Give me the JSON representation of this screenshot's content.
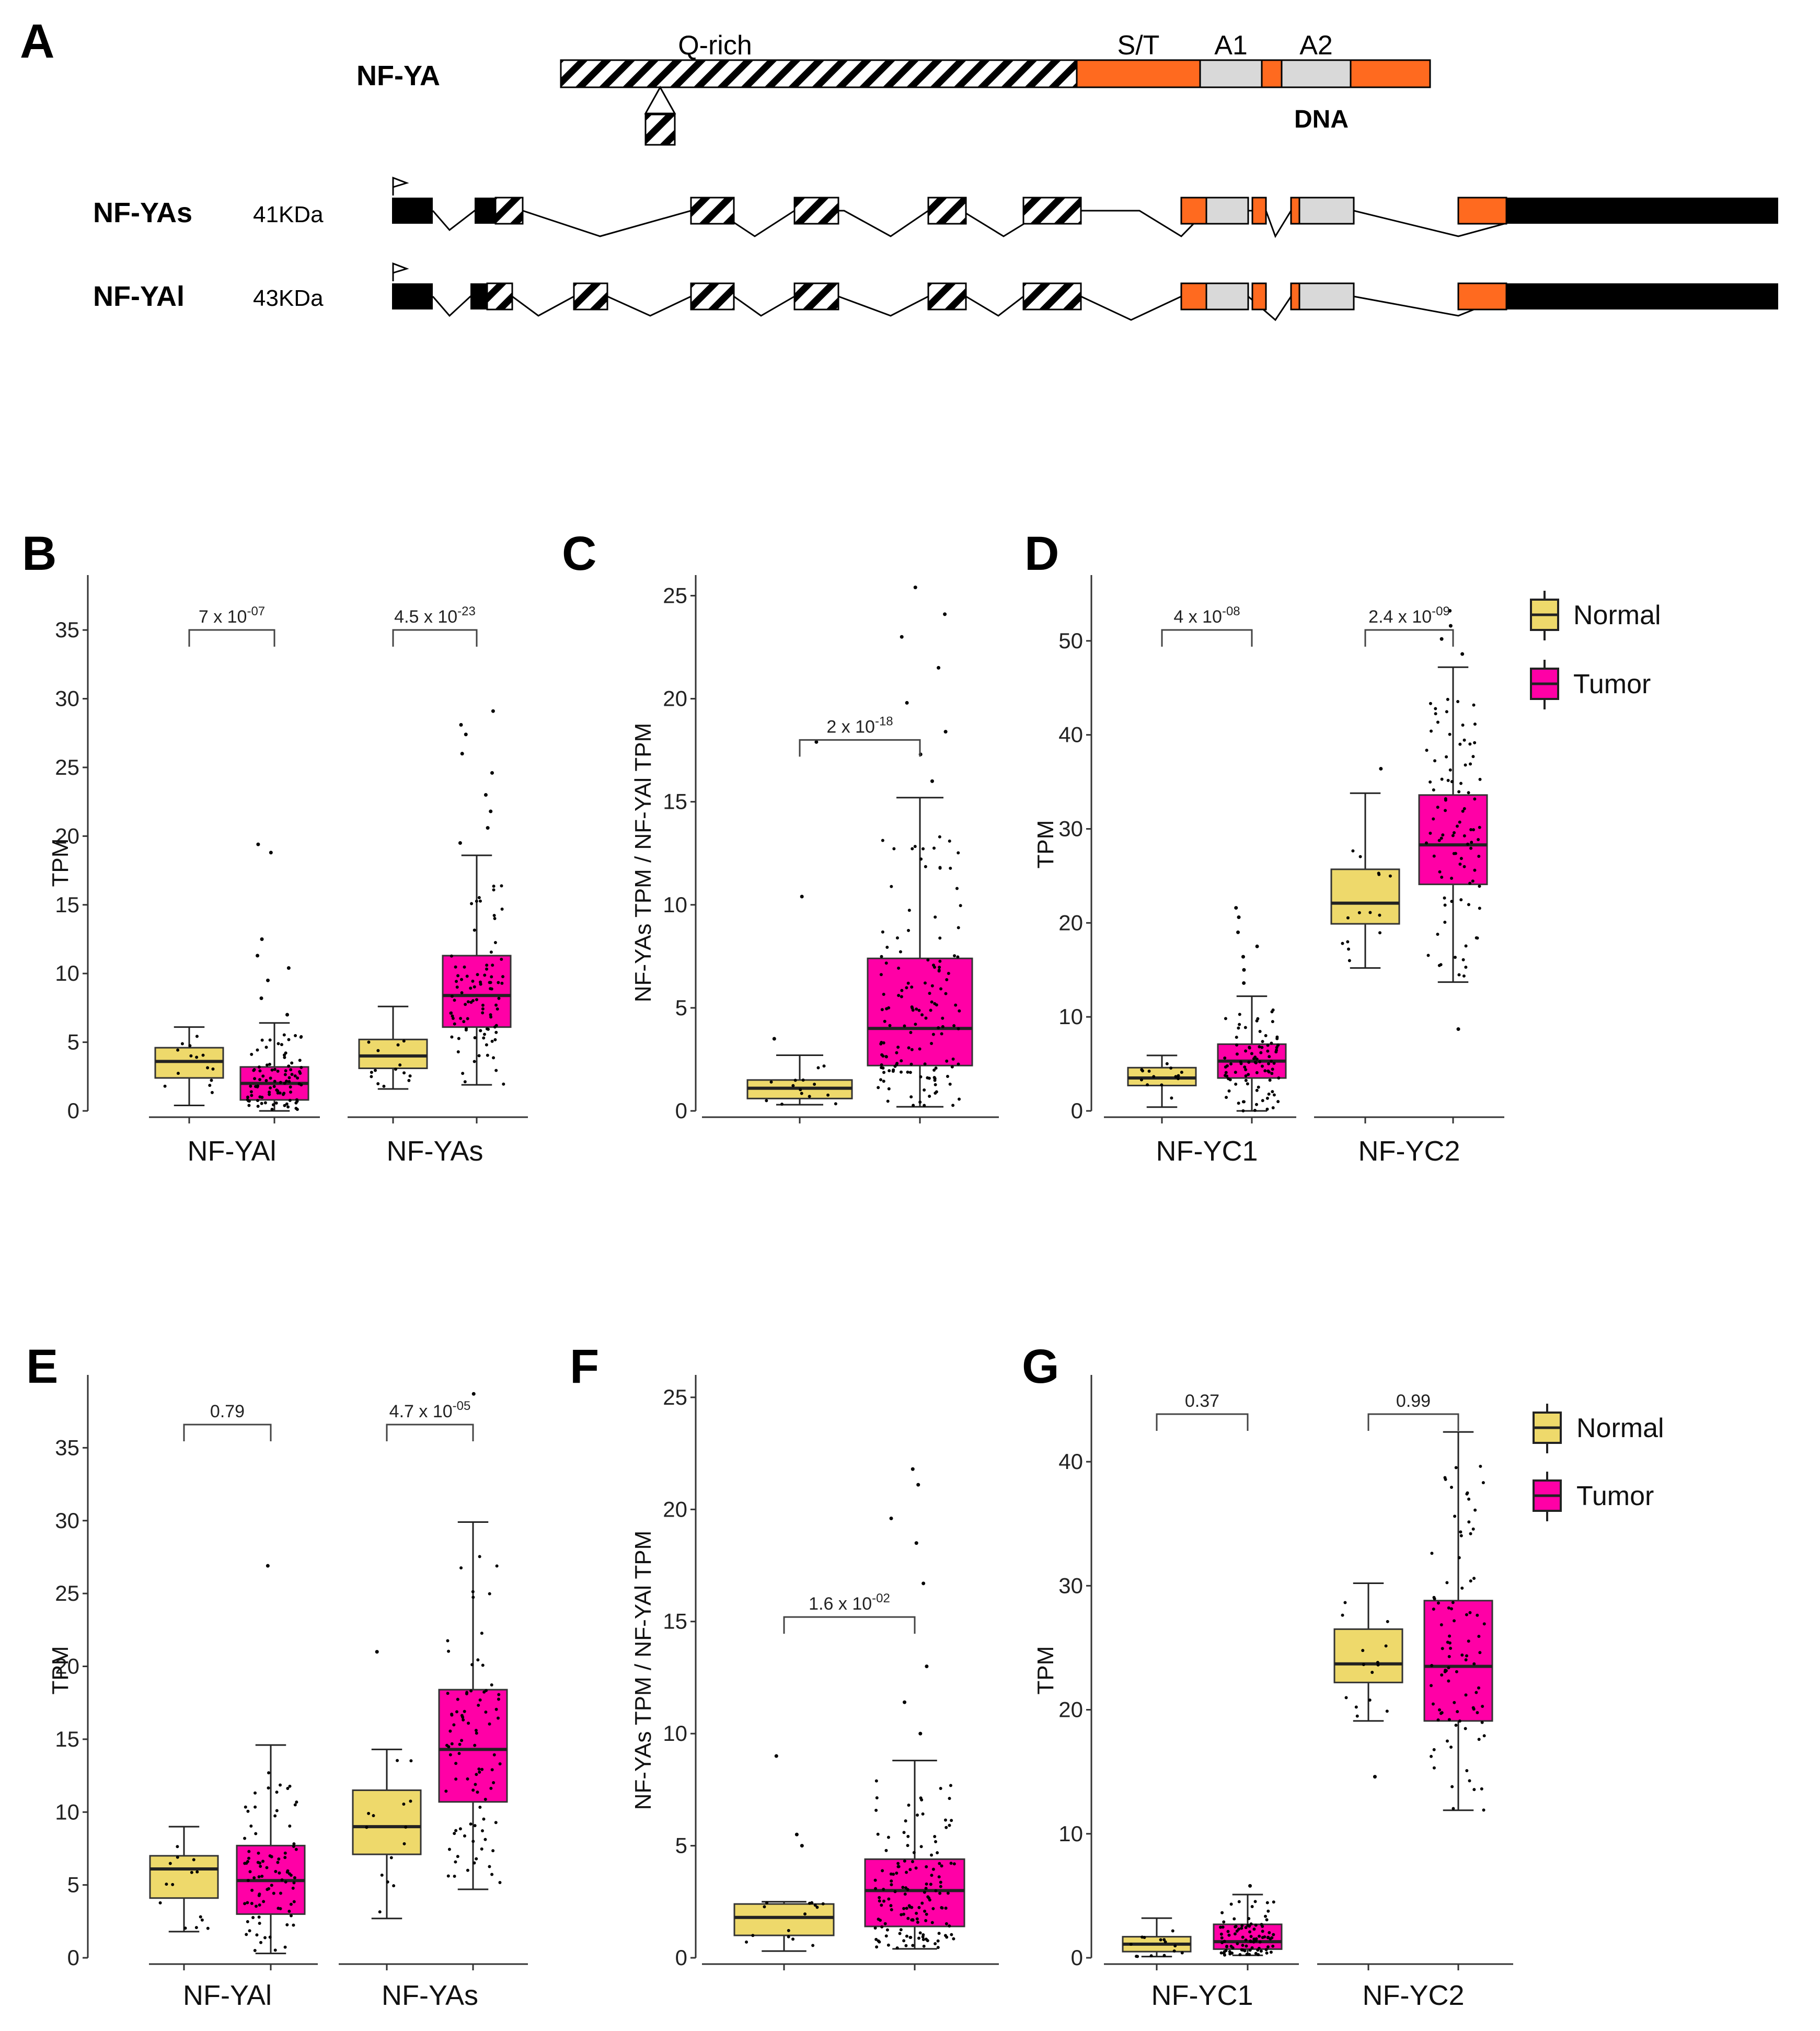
{
  "colors": {
    "normal": "#EED96B",
    "tumor": "#FF00A6",
    "domain_orange": "#FF6A1F",
    "domain_grey": "#D9D9D9"
  },
  "panel_a": {
    "label": "A",
    "protein": "NF-YA",
    "domains": {
      "q_rich": "Q-rich",
      "st": "S/T",
      "a1": "A1",
      "a2": "A2",
      "dna": "DNA"
    },
    "isoforms": [
      {
        "name": "NF-YAs",
        "mass": "41KDa"
      },
      {
        "name": "NF-YAl",
        "mass": "43KDa"
      }
    ]
  },
  "legend": {
    "normal": "Normal",
    "tumor": "Tumor"
  },
  "chart_data": [
    {
      "id": "B",
      "type": "box",
      "ylabel": "TPM",
      "ylim": [
        0,
        39
      ],
      "yticks": [
        "0",
        "5",
        "10",
        "15",
        "20",
        "25",
        "30",
        "35"
      ],
      "groups": [
        {
          "category": "NF-YAl",
          "pvalue": {
            "base": "7 x 10",
            "exp": "-07"
          },
          "normal": {
            "min": 0.4,
            "q1": 2.4,
            "median": 3.6,
            "q3": 4.6,
            "max": 6.1
          },
          "tumor": {
            "min": 0,
            "q1": 0.8,
            "median": 2.0,
            "q3": 3.2,
            "max": 6.4,
            "outliers": [
              7.0,
              8.2,
              9.5,
              10.4,
              11.3,
              12.5,
              18.8,
              19.4
            ]
          }
        },
        {
          "category": "NF-YAs",
          "pvalue": {
            "base": "4.5 x 10",
            "exp": "-23"
          },
          "normal": {
            "min": 1.6,
            "q1": 3.1,
            "median": 4.0,
            "q3": 5.2,
            "max": 7.6
          },
          "tumor": {
            "min": 1.9,
            "q1": 6.1,
            "median": 8.4,
            "q3": 11.3,
            "max": 18.6,
            "outliers": [
              19.5,
              20.6,
              21.8,
              23.0,
              24.6,
              26.0,
              27.4,
              28.1,
              29.1
            ]
          }
        }
      ]
    },
    {
      "id": "C",
      "type": "box",
      "ylabel": "NF-YAs TPM / NF-YAl TPM",
      "ylim": [
        0,
        26
      ],
      "yticks": [
        "0",
        "5",
        "10",
        "15",
        "20",
        "25"
      ],
      "groups": [
        {
          "category": "",
          "pvalue": {
            "base": "2 x 10",
            "exp": "-18"
          },
          "normal": {
            "min": 0.3,
            "q1": 0.6,
            "median": 1.1,
            "q3": 1.5,
            "max": 2.7,
            "outliers": [
              3.5,
              10.4,
              17.9
            ]
          },
          "tumor": {
            "min": 0.2,
            "q1": 2.2,
            "median": 4.0,
            "q3": 7.4,
            "max": 15.2,
            "outliers": [
              16.0,
              17.3,
              18.4,
              19.8,
              21.5,
              23.0,
              24.1,
              25.4
            ]
          }
        }
      ]
    },
    {
      "id": "D",
      "type": "box",
      "ylabel": "TPM",
      "ylim": [
        0,
        57
      ],
      "yticks": [
        "0",
        "10",
        "20",
        "30",
        "40",
        "50"
      ],
      "groups": [
        {
          "category": "NF-YC1",
          "pvalue": {
            "base": "4 x 10",
            "exp": "-08"
          },
          "normal": {
            "min": 0.4,
            "q1": 2.7,
            "median": 3.5,
            "q3": 4.6,
            "max": 5.9
          },
          "tumor": {
            "min": 0,
            "q1": 3.5,
            "median": 5.3,
            "q3": 7.1,
            "max": 12.2,
            "outliers": [
              13.6,
              15.0,
              16.4,
              17.5,
              19.0,
              20.6,
              21.6
            ]
          }
        },
        {
          "category": "NF-YC2",
          "pvalue": {
            "base": "2.4 x 10",
            "exp": "-09"
          },
          "normal": {
            "min": 15.2,
            "q1": 19.9,
            "median": 22.1,
            "q3": 25.7,
            "max": 33.8,
            "outliers": [
              36.4
            ]
          },
          "tumor": {
            "min": 13.7,
            "q1": 24.1,
            "median": 28.3,
            "q3": 33.6,
            "max": 47.2,
            "outliers": [
              8.7,
              48.6,
              50.2,
              51.6,
              53.2
            ]
          }
        }
      ]
    },
    {
      "id": "E",
      "type": "box",
      "ylabel": "TPM",
      "ylim": [
        0,
        40
      ],
      "yticks": [
        "0",
        "5",
        "10",
        "15",
        "20",
        "25",
        "30",
        "35"
      ],
      "groups": [
        {
          "category": "NF-YAl",
          "pvalue": {
            "base": "0.79",
            "exp": ""
          },
          "normal": {
            "min": 1.8,
            "q1": 4.1,
            "median": 6.1,
            "q3": 7.0,
            "max": 9.0
          },
          "tumor": {
            "min": 0.3,
            "q1": 3.0,
            "median": 5.3,
            "q3": 7.7,
            "max": 14.6,
            "outliers": [
              26.9
            ]
          }
        },
        {
          "category": "NF-YAs",
          "pvalue": {
            "base": "4.7 x 10",
            "exp": "-05"
          },
          "normal": {
            "min": 2.7,
            "q1": 7.1,
            "median": 9.0,
            "q3": 11.5,
            "max": 14.3,
            "outliers": [
              21.0
            ]
          },
          "tumor": {
            "min": 4.7,
            "q1": 10.7,
            "median": 14.3,
            "q3": 18.4,
            "max": 29.9,
            "outliers": [
              38.7
            ]
          }
        }
      ]
    },
    {
      "id": "F",
      "type": "box",
      "ylabel": "NF-YAs TPM / NF-YAl TPM",
      "ylim": [
        0,
        26
      ],
      "yticks": [
        "0",
        "5",
        "10",
        "15",
        "20",
        "25"
      ],
      "groups": [
        {
          "category": "",
          "pvalue": {
            "base": "1.6 x 10",
            "exp": "-02"
          },
          "normal": {
            "min": 0.3,
            "q1": 1.0,
            "median": 1.8,
            "q3": 2.4,
            "max": 2.5,
            "outliers": [
              5.0,
              5.5,
              9.0
            ]
          },
          "tumor": {
            "min": 0.4,
            "q1": 1.4,
            "median": 3.0,
            "q3": 4.4,
            "max": 8.8,
            "outliers": [
              10.0,
              11.4,
              13.0,
              16.7,
              18.5,
              19.6,
              21.1,
              21.8
            ]
          }
        }
      ]
    },
    {
      "id": "G",
      "type": "box",
      "ylabel": "TPM",
      "ylim": [
        0,
        47
      ],
      "yticks": [
        "0",
        "10",
        "20",
        "30",
        "40"
      ],
      "groups": [
        {
          "category": "NF-YC1",
          "pvalue": {
            "base": "0.37",
            "exp": ""
          },
          "normal": {
            "min": 0.1,
            "q1": 0.5,
            "median": 1.1,
            "q3": 1.7,
            "max": 3.2
          },
          "tumor": {
            "min": 0.2,
            "q1": 0.7,
            "median": 1.3,
            "q3": 2.7,
            "max": 5.1,
            "outliers": [
              5.8
            ]
          }
        },
        {
          "category": "NF-YC2",
          "pvalue": {
            "base": "0.99",
            "exp": ""
          },
          "normal": {
            "min": 19.1,
            "q1": 22.2,
            "median": 23.7,
            "q3": 26.5,
            "max": 30.2,
            "outliers": [
              14.6
            ]
          },
          "tumor": {
            "min": 11.9,
            "q1": 19.1,
            "median": 23.5,
            "q3": 28.8,
            "max": 42.4
          }
        }
      ]
    }
  ]
}
